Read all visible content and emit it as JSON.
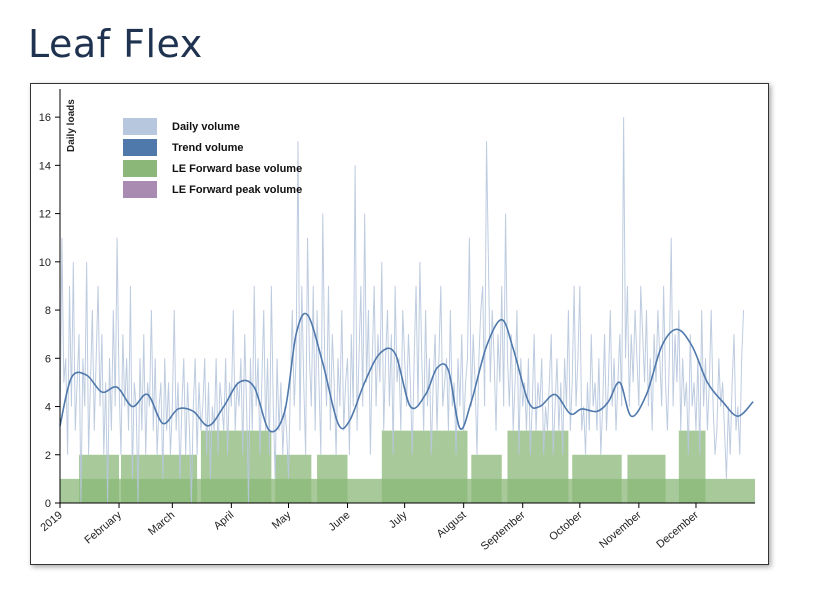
{
  "page": {
    "title": "Leaf Flex"
  },
  "chart_data": {
    "type": "line",
    "title": "",
    "xlabel": "",
    "ylabel": "Daily loads",
    "ylim": [
      0,
      17
    ],
    "yticks": [
      0,
      2,
      4,
      6,
      8,
      10,
      12,
      14,
      16
    ],
    "xlim": [
      0,
      365
    ],
    "month_ticks": [
      {
        "label": "2019",
        "day": 0
      },
      {
        "label": "February",
        "day": 31
      },
      {
        "label": "March",
        "day": 59
      },
      {
        "label": "April",
        "day": 90
      },
      {
        "label": "May",
        "day": 120
      },
      {
        "label": "June",
        "day": 151
      },
      {
        "label": "July",
        "day": 181
      },
      {
        "label": "August",
        "day": 212
      },
      {
        "label": "September",
        "day": 243
      },
      {
        "label": "October",
        "day": 273
      },
      {
        "label": "November",
        "day": 304
      },
      {
        "label": "December",
        "day": 334
      }
    ],
    "legend": [
      {
        "name": "Daily volume",
        "color": "#b7c7dd"
      },
      {
        "name": "Trend volume",
        "color": "#4f78ab"
      },
      {
        "name": "LE Forward base volume",
        "color": "#8bb878"
      },
      {
        "name": "LE Forward peak volume",
        "color": "#a98bb2"
      }
    ],
    "series": [
      {
        "name": "LE Forward base volume",
        "type": "step",
        "segments": [
          {
            "start": 0,
            "end": 365,
            "value": 1
          },
          {
            "start": 10,
            "end": 31,
            "value": 2
          },
          {
            "start": 32,
            "end": 72,
            "value": 2
          },
          {
            "start": 74,
            "end": 111,
            "value": 3
          },
          {
            "start": 113,
            "end": 132,
            "value": 2
          },
          {
            "start": 135,
            "end": 151,
            "value": 2
          },
          {
            "start": 169,
            "end": 214,
            "value": 3
          },
          {
            "start": 216,
            "end": 232,
            "value": 2
          },
          {
            "start": 235,
            "end": 267,
            "value": 3
          },
          {
            "start": 269,
            "end": 295,
            "value": 2
          },
          {
            "start": 298,
            "end": 318,
            "value": 2
          },
          {
            "start": 325,
            "end": 339,
            "value": 3
          }
        ]
      },
      {
        "name": "Trend volume",
        "x": [
          0,
          6,
          14,
          22,
          30,
          38,
          46,
          54,
          62,
          70,
          78,
          86,
          94,
          102,
          110,
          118,
          124,
          130,
          138,
          146,
          152,
          160,
          168,
          176,
          184,
          192,
          198,
          204,
          210,
          216,
          224,
          232,
          238,
          246,
          252,
          260,
          268,
          274,
          282,
          288,
          294,
          300,
          308,
          316,
          324,
          332,
          340,
          348,
          356,
          364
        ],
        "values": [
          3.2,
          5.2,
          5.3,
          4.6,
          4.8,
          4.0,
          4.5,
          3.3,
          3.9,
          3.8,
          3.2,
          4.0,
          5.0,
          4.8,
          3.0,
          3.8,
          7.0,
          7.8,
          5.8,
          3.3,
          3.4,
          5.0,
          6.2,
          6.2,
          4.0,
          4.5,
          5.6,
          5.5,
          3.1,
          4.2,
          6.5,
          7.6,
          6.4,
          4.2,
          4.0,
          4.5,
          3.7,
          3.9,
          3.8,
          4.2,
          5.0,
          3.6,
          4.5,
          6.5,
          7.2,
          6.5,
          5.0,
          4.2,
          3.6,
          4.2
        ]
      },
      {
        "name": "Daily volume",
        "values": [
          3,
          11,
          5,
          6,
          2,
          9,
          4,
          10,
          3,
          5,
          7,
          0,
          6,
          4,
          10,
          2,
          5,
          8,
          3,
          6,
          9,
          4,
          7,
          2,
          5,
          0,
          6,
          3,
          8,
          4,
          11,
          5,
          2,
          7,
          4,
          6,
          3,
          9,
          1,
          5,
          4,
          0,
          6,
          3,
          7,
          2,
          5,
          4,
          8,
          3,
          6,
          2,
          4,
          5,
          1,
          6,
          3,
          5,
          2,
          4,
          8,
          3,
          5,
          1,
          4,
          6,
          2,
          5,
          3,
          0,
          4,
          6,
          2,
          5,
          3,
          4,
          6,
          2,
          5,
          1,
          4,
          3,
          6,
          2,
          5,
          4,
          3,
          6,
          2,
          5,
          4,
          8,
          3,
          5,
          4,
          6,
          2,
          7,
          4,
          0,
          6,
          3,
          9,
          4,
          6,
          2,
          5,
          8,
          3,
          6,
          2,
          9,
          4,
          1,
          6,
          3,
          5,
          2,
          4,
          3,
          1,
          5,
          8,
          4,
          6,
          15,
          3,
          9,
          5,
          2,
          11,
          6,
          4,
          9,
          3,
          8,
          5,
          2,
          12,
          6,
          4,
          9,
          3,
          7,
          5,
          2,
          6,
          4,
          8,
          3,
          5,
          6,
          2,
          7,
          4,
          14,
          3,
          6,
          9,
          4,
          12,
          5,
          8,
          2,
          6,
          9,
          4,
          7,
          5,
          10,
          3,
          6,
          8,
          4,
          7,
          2,
          9,
          5,
          6,
          3,
          8,
          6,
          4,
          7,
          5,
          2,
          6,
          9,
          4,
          10,
          6,
          3,
          8,
          4,
          6,
          2,
          5,
          7,
          3,
          6,
          9,
          4,
          5,
          6,
          3,
          8,
          4,
          5,
          2,
          6,
          4,
          7,
          3,
          5,
          6,
          11,
          4,
          7,
          5,
          2,
          6,
          8,
          9,
          4,
          15,
          10,
          5,
          8,
          6,
          3,
          7,
          5,
          9,
          4,
          12,
          6,
          4,
          7,
          3,
          5,
          8,
          2,
          6,
          4,
          5,
          3,
          6,
          2,
          4,
          7,
          3,
          5,
          4,
          6,
          2,
          4,
          3,
          5,
          7,
          2,
          4,
          6,
          3,
          5,
          2,
          6,
          4,
          8,
          3,
          5,
          9,
          4,
          6,
          9,
          3,
          4,
          2,
          5,
          3,
          7,
          4,
          5,
          3,
          6,
          2,
          4,
          7,
          3,
          5,
          8,
          4,
          6,
          3,
          5,
          7,
          4,
          16,
          6,
          9,
          4,
          7,
          5,
          8,
          6,
          4,
          9,
          7,
          5,
          8,
          4,
          6,
          3,
          7,
          5,
          8,
          6,
          4,
          9,
          5,
          3,
          6,
          11,
          4,
          7,
          5,
          8,
          3,
          6,
          4,
          5,
          2,
          7,
          4,
          5,
          3,
          6,
          2,
          8,
          4,
          6,
          3,
          5,
          8,
          4,
          2,
          3,
          6,
          4,
          5,
          3,
          1,
          4,
          2,
          5,
          7,
          3,
          4,
          2,
          6,
          8
        ]
      }
    ]
  }
}
